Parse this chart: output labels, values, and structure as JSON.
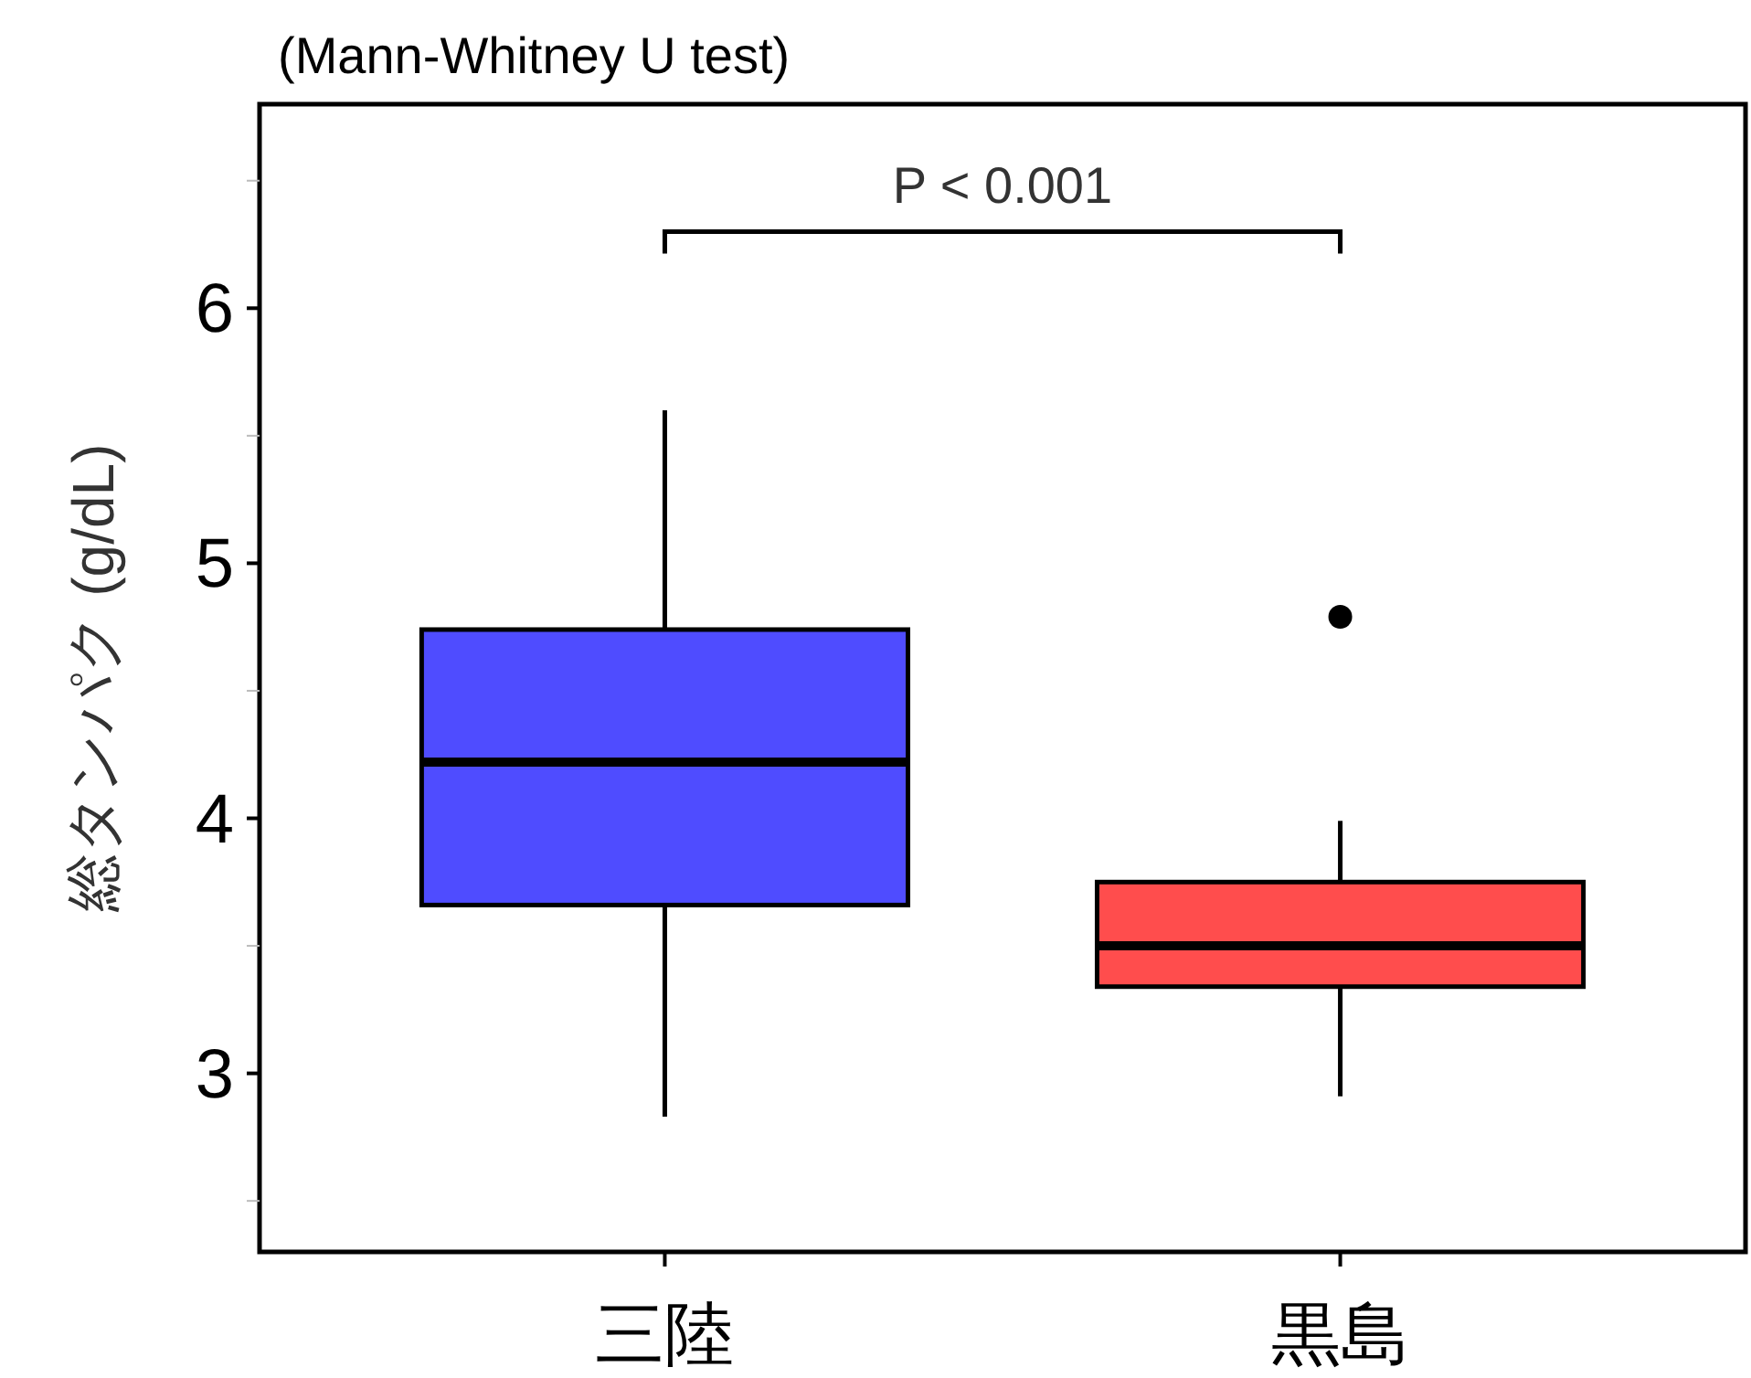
{
  "chart_data": {
    "type": "box",
    "title": "(Mann-Whitney U test)",
    "ylabel": "総タンパク (g/dL)",
    "categories": [
      "三陸",
      "黒島"
    ],
    "colors": [
      "#4f4cff",
      "#ff4d4d"
    ],
    "boxes": [
      {
        "low": 2.83,
        "q1": 3.66,
        "median": 4.22,
        "q3": 4.74,
        "high": 5.6
      },
      {
        "low": 2.91,
        "q1": 3.34,
        "median": 3.5,
        "q3": 3.75,
        "high": 3.99,
        "outliers": [
          4.79
        ]
      }
    ],
    "ylim": [
      2.3,
      6.8
    ],
    "yticks": [
      {
        "value": 2.5,
        "label": null
      },
      3,
      {
        "value": 3.5,
        "label": null
      },
      4,
      {
        "value": 4.5,
        "label": null
      },
      5,
      {
        "value": 5.5,
        "label": null
      },
      6,
      {
        "value": 6.5,
        "label": null
      }
    ],
    "annotations": [
      "P < 0.001"
    ]
  }
}
